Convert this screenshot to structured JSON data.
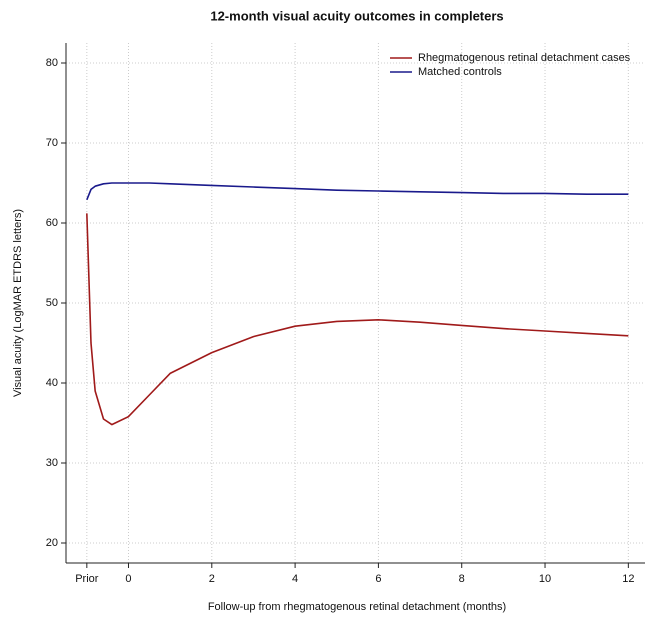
{
  "chart_data": {
    "type": "line",
    "title": "12-month visual acuity outcomes in completers",
    "x_label": "Follow-up from rhegmatogenous retinal detachment  (months)",
    "y_label": "Visual acuity (LogMAR ETDRS letters)",
    "x": [
      -1,
      -0.9,
      -0.8,
      -0.6,
      -0.4,
      0,
      0.5,
      1,
      2,
      3,
      4,
      5,
      6,
      7,
      8,
      9,
      10,
      11,
      12
    ],
    "series": [
      {
        "name": "Rhegmatogenous retinal detachment cases",
        "color": "#a01a1a",
        "values": [
          61.2,
          45,
          39,
          35.5,
          34.8,
          35.8,
          38.5,
          41.2,
          43.8,
          45.8,
          47.1,
          47.7,
          47.9,
          47.6,
          47.2,
          46.8,
          46.5,
          46.2,
          45.9
        ]
      },
      {
        "name": "Matched controls",
        "color": "#1a1a8c",
        "values": [
          62.9,
          64.2,
          64.6,
          64.9,
          65.0,
          65.0,
          65.0,
          64.9,
          64.7,
          64.5,
          64.3,
          64.1,
          64.0,
          63.9,
          63.8,
          63.7,
          63.7,
          63.6,
          63.6
        ]
      }
    ],
    "xlim": [
      -1.5,
      12.4
    ],
    "ylim": [
      17.5,
      82.5
    ],
    "xticks": [
      {
        "value": -1,
        "label": "Prior"
      },
      0,
      2,
      4,
      6,
      8,
      10,
      12
    ],
    "yticks": [
      20,
      30,
      40,
      50,
      60,
      70,
      80
    ],
    "grid": true,
    "legend": "top-right"
  }
}
